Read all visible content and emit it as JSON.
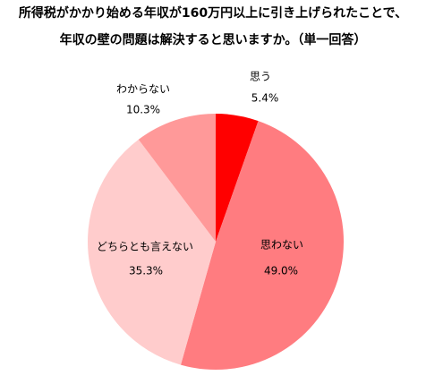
{
  "chart_data": {
    "type": "pie",
    "title": [
      "所得税がかかり始める年収が160万円以上に引き上げられたことで、",
      "年収の壁の問題は解決すると思いますか。（単一回答）"
    ],
    "categories": [
      "思う",
      "思わない",
      "どちらとも言えない",
      "わからない"
    ],
    "values": [
      5.4,
      49.0,
      35.3,
      10.3
    ],
    "value_labels": [
      "5.4%",
      "49.0%",
      "35.3%",
      "10.3%"
    ],
    "colors": [
      "#ff0000",
      "#ff7c80",
      "#ffcccc",
      "#ff9999"
    ]
  }
}
